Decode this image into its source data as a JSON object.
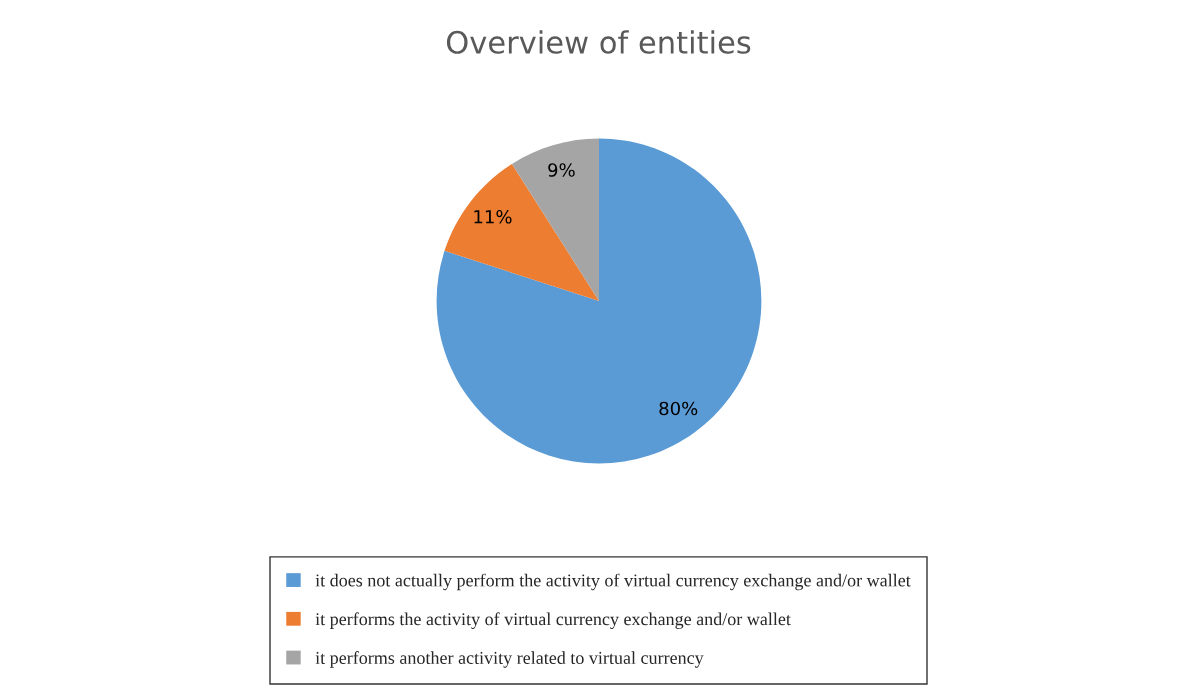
{
  "chart_data": {
    "type": "pie",
    "title": "Overview of entities",
    "categories": [
      "it does not actually perform the activity of virtual currency exchange and/or wallet",
      "it performs the activity of virtual currency exchange and/or wallet",
      "it performs another activity related to virtual currency"
    ],
    "values": [
      80,
      11,
      9
    ],
    "colors": [
      "#5b9bd5",
      "#ed7d31",
      "#a5a5a5"
    ],
    "value_labels": [
      "80%",
      "11%",
      "9%"
    ],
    "legend": "bottom"
  }
}
